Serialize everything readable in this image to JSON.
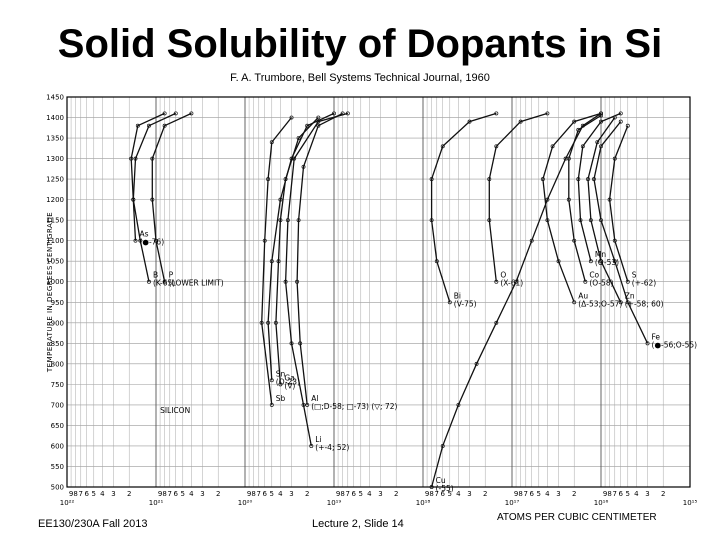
{
  "slide": {
    "title": "Solid Solubility of Dopants in Si",
    "citation": "F. A. Trumbore, Bell Systems Technical Journal, 1960",
    "footer_left": "EE130/230A Fall 2013",
    "footer_center": "Lecture 2, Slide 14",
    "footer_right": "ATOMS PER CUBIC CENTIMETER"
  },
  "chart_data": {
    "type": "line",
    "ylabel": "TEMPERATURE IN DEGREES CENTIGRADE",
    "xlabel": "ATOMS PER CUBIC CENTIMETER",
    "x_scale": "log-reversed",
    "xlim": [
      1e+22,
      1000000000000000.0
    ],
    "ylim": [
      500,
      1450
    ],
    "y_ticks": [
      "1450",
      "1400",
      "1350",
      "1300",
      "1250",
      "1200",
      "1150",
      "1100",
      "1050",
      "1000",
      "950",
      "900",
      "850",
      "800",
      "750",
      "700",
      "650",
      "600",
      "550",
      "500"
    ],
    "decade_labels": [
      {
        "value": 1e+22,
        "label": "10²²"
      },
      {
        "value": 1e+21,
        "label": "10²¹"
      },
      {
        "value": 1e+20,
        "label": "10²⁰"
      },
      {
        "value": 1e+19,
        "label": "10¹⁹"
      },
      {
        "value": 1e+18,
        "label": "10¹⁸"
      },
      {
        "value": 1e+17,
        "label": "10¹⁷"
      },
      {
        "value": 1e+16,
        "label": "10¹⁶"
      },
      {
        "value": 1000000000000000.0,
        "label": "10¹⁵"
      }
    ],
    "minor_labels": [
      "9",
      "8",
      "7",
      "6",
      "5",
      "4",
      "3",
      "2"
    ],
    "grid": true,
    "annotation": "SILICON",
    "series": [
      {
        "name": "B",
        "sublabel": "(K-65)",
        "points": [
          [
            1.2e+21,
            1000
          ],
          [
            1.5e+21,
            1100
          ],
          [
            1.8e+21,
            1200
          ],
          [
            1.9e+21,
            1300
          ],
          [
            1.6e+21,
            1380
          ],
          [
            8e+20,
            1410
          ]
        ]
      },
      {
        "name": "As",
        "sublabel": "(●-76)",
        "points": [
          [
            1.7e+21,
            1100
          ],
          [
            1.8e+21,
            1200
          ],
          [
            1.7e+21,
            1300
          ],
          [
            1.2e+21,
            1380
          ],
          [
            6e+20,
            1410
          ]
        ]
      },
      {
        "name": "P",
        "sublabel": "(LOWER LIMIT)",
        "points": [
          [
            8e+20,
            1000
          ],
          [
            1e+21,
            1100
          ],
          [
            1.1e+21,
            1200
          ],
          [
            1.1e+21,
            1300
          ],
          [
            8e+20,
            1380
          ],
          [
            4e+20,
            1410
          ]
        ]
      },
      {
        "name": "Sb",
        "sublabel": "",
        "points": [
          [
            5e+19,
            700
          ],
          [
            6.5e+19,
            900
          ],
          [
            6e+19,
            1100
          ],
          [
            5.5e+19,
            1250
          ],
          [
            5e+19,
            1340
          ],
          [
            3e+19,
            1400
          ]
        ]
      },
      {
        "name": "Ga",
        "sublabel": "(∇)",
        "points": [
          [
            4e+19,
            750
          ],
          [
            4.5e+19,
            900
          ],
          [
            4.2e+19,
            1050
          ],
          [
            4e+19,
            1150
          ],
          [
            3.5e+19,
            1250
          ],
          [
            2.5e+19,
            1350
          ],
          [
            1.5e+19,
            1400
          ]
        ]
      },
      {
        "name": "Sn",
        "sublabel": "(O-23)",
        "points": [
          [
            5e+19,
            760
          ],
          [
            5.5e+19,
            900
          ],
          [
            5e+19,
            1050
          ],
          [
            4e+19,
            1200
          ],
          [
            3e+19,
            1300
          ],
          [
            2e+19,
            1380
          ],
          [
            1e+19,
            1410
          ]
        ]
      },
      {
        "name": "Al",
        "sublabel": "(□;D-58; □-73) (▽; 72)",
        "points": [
          [
            2e+19,
            700
          ],
          [
            2.4e+19,
            850
          ],
          [
            2.6e+19,
            1000
          ],
          [
            2.5e+19,
            1150
          ],
          [
            2.2e+19,
            1280
          ],
          [
            1.5e+19,
            1380
          ],
          [
            8e+18,
            1410
          ]
        ]
      },
      {
        "name": "Li",
        "sublabel": "(+-4; 52)",
        "points": [
          [
            1.8e+19,
            600
          ],
          [
            2.2e+19,
            700
          ],
          [
            3e+19,
            850
          ],
          [
            3.5e+19,
            1000
          ],
          [
            3.3e+19,
            1150
          ],
          [
            2.8e+19,
            1300
          ],
          [
            1.5e+19,
            1390
          ],
          [
            7e+18,
            1410
          ]
        ]
      },
      {
        "name": "Bi",
        "sublabel": "(V-75)",
        "points": [
          [
            5e+17,
            950
          ],
          [
            7e+17,
            1050
          ],
          [
            8e+17,
            1150
          ],
          [
            8e+17,
            1250
          ],
          [
            6e+17,
            1330
          ],
          [
            3e+17,
            1390
          ],
          [
            1.5e+17,
            1410
          ]
        ]
      },
      {
        "name": "O",
        "sublabel": "(X-61)",
        "points": [
          [
            1.5e+17,
            1000
          ],
          [
            1.8e+17,
            1150
          ],
          [
            1.8e+17,
            1250
          ],
          [
            1.5e+17,
            1330
          ],
          [
            8e+16,
            1390
          ],
          [
            4e+16,
            1410
          ]
        ]
      },
      {
        "name": "Au",
        "sublabel": "(Δ-53;O-57)",
        "points": [
          [
            2e+16,
            950
          ],
          [
            3e+16,
            1050
          ],
          [
            4e+16,
            1150
          ],
          [
            4.5e+16,
            1250
          ],
          [
            3.5e+16,
            1330
          ],
          [
            2e+16,
            1390
          ],
          [
            1e+16,
            1410
          ]
        ]
      },
      {
        "name": "Cu",
        "sublabel": "(-55)",
        "points": [
          [
            8e+17,
            500
          ],
          [
            6e+17,
            600
          ],
          [
            4e+17,
            700
          ],
          [
            2.5e+17,
            800
          ],
          [
            1.5e+17,
            900
          ],
          [
            9e+16,
            1000
          ],
          [
            6e+16,
            1100
          ],
          [
            4e+16,
            1200
          ],
          [
            2.5e+16,
            1300
          ],
          [
            1.6e+16,
            1380
          ],
          [
            1e+16,
            1410
          ]
        ]
      },
      {
        "name": "Co",
        "sublabel": "(O-58)",
        "points": [
          [
            1.5e+16,
            1000
          ],
          [
            2e+16,
            1100
          ],
          [
            2.3e+16,
            1200
          ],
          [
            2.3e+16,
            1300
          ],
          [
            1.8e+16,
            1370
          ],
          [
            1e+16,
            1405
          ]
        ]
      },
      {
        "name": "Mn",
        "sublabel": "(O-53)",
        "points": [
          [
            1.3e+16,
            1050
          ],
          [
            1.7e+16,
            1150
          ],
          [
            1.8e+16,
            1250
          ],
          [
            1.6e+16,
            1330
          ],
          [
            1e+16,
            1390
          ],
          [
            6000000000000000.0,
            1410
          ]
        ]
      },
      {
        "name": "S",
        "sublabel": "(+-62)",
        "points": [
          [
            5000000000000000.0,
            1000
          ],
          [
            7000000000000000.0,
            1100
          ],
          [
            8000000000000000.0,
            1200
          ],
          [
            7000000000000000.0,
            1300
          ],
          [
            5000000000000000.0,
            1380
          ]
        ]
      },
      {
        "name": "Zn",
        "sublabel": "(+-58; 60)",
        "points": [
          [
            6000000000000000.0,
            950
          ],
          [
            1e+16,
            1050
          ],
          [
            1.3e+16,
            1150
          ],
          [
            1.4e+16,
            1250
          ],
          [
            1.1e+16,
            1340
          ],
          [
            7000000000000000.0,
            1400
          ]
        ]
      },
      {
        "name": "Fe",
        "sublabel": "(●-56;O-55)",
        "points": [
          [
            3000000000000000.0,
            850
          ],
          [
            5000000000000000.0,
            950
          ],
          [
            7000000000000000.0,
            1050
          ],
          [
            1e+16,
            1150
          ],
          [
            1.2e+16,
            1250
          ],
          [
            1e+16,
            1330
          ],
          [
            6000000000000000.0,
            1390
          ]
        ]
      }
    ]
  }
}
